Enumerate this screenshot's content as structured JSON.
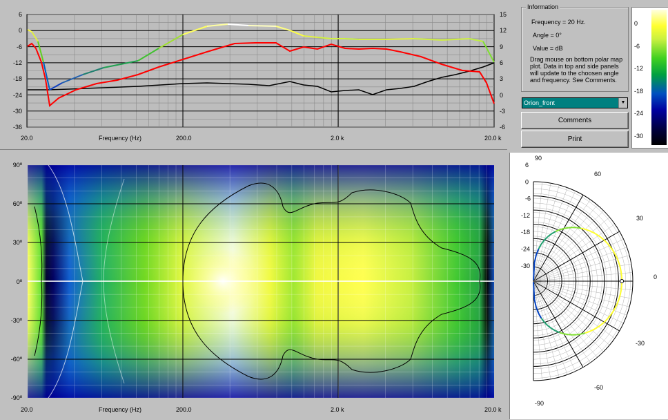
{
  "top_plot": {
    "left_axis_ticks": [
      "6",
      "0",
      "-6",
      "-12",
      "-18",
      "-24",
      "-30",
      "-36"
    ],
    "right_axis_ticks": [
      "15",
      "12",
      "9",
      "6",
      "3",
      "0",
      "-3",
      "-6"
    ],
    "x_ticks": [
      "20.0",
      "200.0",
      "2.0 k",
      "20.0 k"
    ],
    "x_title": "Frequency (Hz)"
  },
  "map_plot": {
    "y_ticks": [
      "90º",
      "60º",
      "30º",
      "0º",
      "-30º",
      "-60º",
      "-90º"
    ],
    "x_ticks": [
      "20.0",
      "200.0",
      "2.0 k",
      "20.0 k"
    ],
    "x_title": "Frequency (Hz)"
  },
  "info": {
    "legend": "Information",
    "frequency": "Frequency = 20 Hz.",
    "angle": "Angle = 0°",
    "value": "Value =  dB",
    "help": "Drag mouse on bottom polar map plot.  Data in top and side panels will update to the choosen angle and frequency.  See Comments."
  },
  "dataset": {
    "selected": "Orion_front"
  },
  "buttons": {
    "comments": "Comments",
    "print": "Print"
  },
  "color_scale": {
    "ticks": [
      "0",
      "-6",
      "-12",
      "-18",
      "-24",
      "-30"
    ]
  },
  "polar": {
    "radial_ticks": [
      "6",
      "0",
      "-6",
      "-12",
      "-18",
      "-24",
      "-30"
    ],
    "angle_labels": [
      "90",
      "60",
      "30",
      "0",
      "-30",
      "-60",
      "-90"
    ]
  },
  "colors": {
    "background": "#c0c0c0",
    "red_curve": "#ff0000",
    "black_curve": "#000000"
  }
}
